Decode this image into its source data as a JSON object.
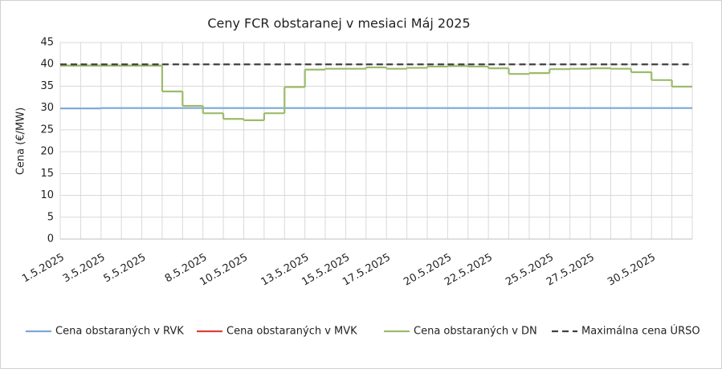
{
  "chart_data": {
    "type": "line",
    "title": "Ceny FCR obstaranej v mesiaci Máj 2025",
    "y_label": "Cena (€/MW)",
    "categories": [
      "1.5.2025",
      null,
      "3.5.2025",
      null,
      "5.5.2025",
      null,
      null,
      "8.5.2025",
      null,
      "10.5.2025",
      null,
      null,
      "13.5.2025",
      null,
      "15.5.2025",
      null,
      "17.5.2025",
      null,
      null,
      "20.5.2025",
      null,
      "22.5.2025",
      null,
      null,
      "25.5.2025",
      null,
      "27.5.2025",
      null,
      null,
      "30.5.2025",
      null
    ],
    "series": [
      {
        "name": "Cena obstaraných v RVK",
        "color": "#7ea6d8",
        "dash": false,
        "values": [
          29.9,
          29.9,
          30,
          30,
          30,
          30,
          30,
          30,
          30,
          30,
          30,
          30,
          30,
          30,
          30,
          30,
          30,
          30,
          30,
          30,
          30,
          30,
          30,
          30,
          30,
          30,
          30,
          30,
          30,
          30,
          30
        ]
      },
      {
        "name": "Cena obstaraných v MVK",
        "color": "#e0403a",
        "dash": false,
        "values": [
          null,
          null,
          null,
          null,
          null,
          null,
          null,
          null,
          null,
          null,
          null,
          null,
          null,
          null,
          null,
          null,
          null,
          null,
          null,
          null,
          null,
          null,
          null,
          null,
          null,
          null,
          null,
          null,
          null,
          null,
          null
        ]
      },
      {
        "name": "Cena obstaraných v DN",
        "color": "#9cbb6a",
        "dash": false,
        "values": [
          39.7,
          39.7,
          39.7,
          39.7,
          39.7,
          33.8,
          30.5,
          28.8,
          27.5,
          27.2,
          28.8,
          34.8,
          38.8,
          39.0,
          39.0,
          39.3,
          39.0,
          39.2,
          39.5,
          39.6,
          39.5,
          39.1,
          37.8,
          38.0,
          38.9,
          39.0,
          39.1,
          39.0,
          38.2,
          36.4,
          34.9
        ]
      },
      {
        "name": "Maximálna cena ÚRSO",
        "color": "#404040",
        "dash": true,
        "values": [
          40,
          40,
          40,
          40,
          40,
          40,
          40,
          40,
          40,
          40,
          40,
          40,
          40,
          40,
          40,
          40,
          40,
          40,
          40,
          40,
          40,
          40,
          40,
          40,
          40,
          40,
          40,
          40,
          40,
          40,
          40
        ]
      }
    ],
    "ylim": [
      0,
      45
    ],
    "yticks": [
      0,
      5,
      10,
      15,
      20,
      25,
      30,
      35,
      40,
      45
    ],
    "grid": true,
    "legend": "bottom"
  }
}
